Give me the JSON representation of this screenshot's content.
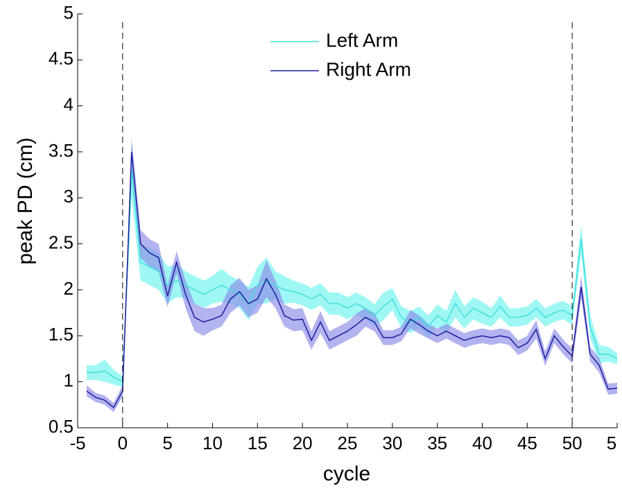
{
  "chart_data": {
    "type": "line",
    "xlabel": "cycle",
    "ylabel": "peak PD (cm)",
    "xlim": [
      -5,
      55
    ],
    "xticks": [
      -5,
      0,
      5,
      10,
      15,
      20,
      25,
      30,
      35,
      40,
      45,
      50,
      {
        "value": 55,
        "label": "5"
      }
    ],
    "ylim": [
      0.5,
      5
    ],
    "yticks": [
      0.5,
      1,
      1.5,
      2,
      2.5,
      3,
      3.5,
      4,
      4.5,
      5
    ],
    "vlines": [
      0,
      50
    ],
    "legend": "top",
    "x": [
      -4,
      -3,
      -2,
      -1,
      0,
      1,
      2,
      3,
      4,
      5,
      6,
      7,
      8,
      9,
      10,
      11,
      12,
      13,
      14,
      15,
      16,
      17,
      18,
      19,
      20,
      21,
      22,
      23,
      24,
      25,
      26,
      27,
      28,
      29,
      30,
      31,
      32,
      33,
      34,
      35,
      36,
      37,
      38,
      39,
      40,
      41,
      42,
      43,
      44,
      45,
      46,
      47,
      48,
      49,
      50,
      51,
      52,
      53,
      54,
      55
    ],
    "series": [
      {
        "name": "Left Arm",
        "color": "#3fe0dc",
        "band_color": "#6cf2ee",
        "values": [
          1.1,
          1.1,
          1.12,
          1.05,
          1.0,
          3.3,
          2.3,
          2.25,
          2.2,
          2.05,
          2.1,
          2.05,
          2.0,
          1.95,
          2.0,
          2.05,
          2.0,
          1.95,
          1.85,
          2.05,
          2.1,
          2.05,
          2.0,
          1.98,
          1.95,
          1.9,
          1.95,
          1.85,
          1.85,
          1.8,
          1.85,
          1.8,
          1.72,
          1.82,
          1.9,
          1.7,
          1.65,
          1.7,
          1.6,
          1.72,
          1.65,
          1.85,
          1.7,
          1.8,
          1.75,
          1.7,
          1.82,
          1.7,
          1.7,
          1.72,
          1.8,
          1.7,
          1.75,
          1.78,
          1.72,
          2.55,
          1.6,
          1.3,
          1.3,
          1.25
        ],
        "errors": [
          0.08,
          0.08,
          0.12,
          0.08,
          0.06,
          0.3,
          0.2,
          0.2,
          0.2,
          0.2,
          0.18,
          0.15,
          0.15,
          0.15,
          0.15,
          0.18,
          0.15,
          0.15,
          0.18,
          0.2,
          0.25,
          0.15,
          0.15,
          0.12,
          0.12,
          0.12,
          0.12,
          0.12,
          0.12,
          0.12,
          0.12,
          0.12,
          0.12,
          0.15,
          0.12,
          0.12,
          0.12,
          0.12,
          0.12,
          0.12,
          0.12,
          0.15,
          0.12,
          0.12,
          0.12,
          0.1,
          0.12,
          0.1,
          0.1,
          0.1,
          0.1,
          0.1,
          0.1,
          0.1,
          0.1,
          0.15,
          0.12,
          0.1,
          0.08,
          0.06
        ]
      },
      {
        "name": "Right Arm",
        "color": "#1c1c9c",
        "band_color": "#8a8ae8",
        "values": [
          0.9,
          0.83,
          0.8,
          0.72,
          0.9,
          3.5,
          2.5,
          2.4,
          2.35,
          1.93,
          2.3,
          1.95,
          1.7,
          1.65,
          1.68,
          1.72,
          1.9,
          1.98,
          1.85,
          1.9,
          2.12,
          1.95,
          1.72,
          1.67,
          1.68,
          1.45,
          1.65,
          1.45,
          1.5,
          1.55,
          1.62,
          1.7,
          1.65,
          1.48,
          1.48,
          1.52,
          1.68,
          1.62,
          1.55,
          1.5,
          1.55,
          1.5,
          1.45,
          1.48,
          1.5,
          1.48,
          1.5,
          1.48,
          1.37,
          1.42,
          1.57,
          1.25,
          1.5,
          1.38,
          1.28,
          2.03,
          1.3,
          1.18,
          0.92,
          0.93
        ],
        "errors": [
          0.06,
          0.05,
          0.05,
          0.05,
          0.06,
          0.15,
          0.15,
          0.15,
          0.15,
          0.12,
          0.12,
          0.15,
          0.15,
          0.15,
          0.12,
          0.12,
          0.15,
          0.15,
          0.15,
          0.15,
          0.2,
          0.15,
          0.12,
          0.12,
          0.12,
          0.1,
          0.12,
          0.1,
          0.1,
          0.1,
          0.12,
          0.1,
          0.1,
          0.08,
          0.08,
          0.08,
          0.1,
          0.1,
          0.08,
          0.08,
          0.08,
          0.08,
          0.08,
          0.08,
          0.08,
          0.08,
          0.08,
          0.08,
          0.08,
          0.08,
          0.1,
          0.08,
          0.08,
          0.08,
          0.08,
          0.12,
          0.08,
          0.08,
          0.06,
          0.06
        ]
      }
    ]
  }
}
